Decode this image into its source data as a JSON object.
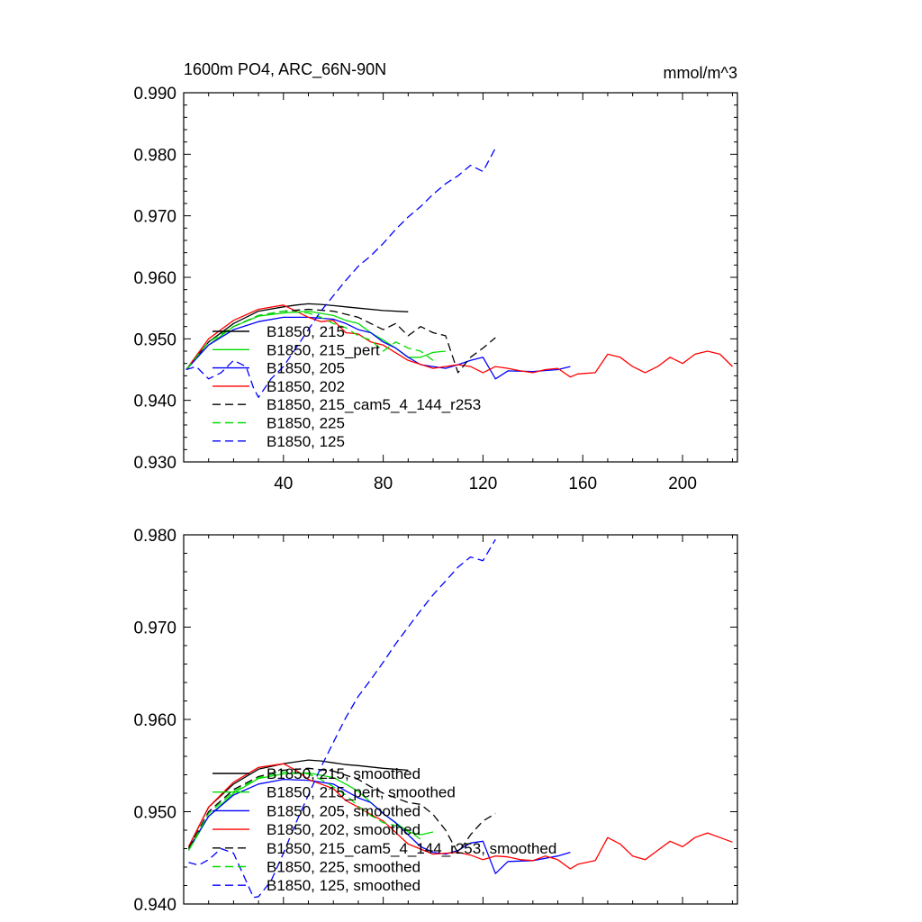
{
  "chart_data": [
    {
      "type": "line",
      "title": "1600m PO4, ARC_66N-90N",
      "units": "mmol/m^3",
      "xlim": [
        0,
        222
      ],
      "ylim": [
        0.93,
        0.99
      ],
      "x_ticks": [
        40,
        80,
        120,
        160,
        200
      ],
      "x_tick_labels": [
        "40",
        "80",
        "120",
        "160",
        "200"
      ],
      "y_ticks": [
        0.93,
        0.94,
        0.95,
        0.96,
        0.97,
        0.98,
        0.99
      ],
      "y_tick_labels": [
        "0.930",
        "0.940",
        "0.950",
        "0.960",
        "0.970",
        "0.980",
        "0.990"
      ],
      "legend_position": "lower-left",
      "series": [
        {
          "name": "B1850, 215",
          "color": "#000000",
          "dash": "solid",
          "x": [
            1,
            10,
            20,
            30,
            40,
            45,
            50,
            55,
            60,
            65,
            70,
            80,
            90
          ],
          "y": [
            0.945,
            0.9495,
            0.9525,
            0.9545,
            0.9552,
            0.9555,
            0.9557,
            0.9556,
            0.9554,
            0.9552,
            0.955,
            0.9546,
            0.9544
          ]
        },
        {
          "name": "B1850, 215_pert",
          "color": "#00dd00",
          "dash": "solid",
          "x": [
            1,
            10,
            20,
            30,
            40,
            50,
            60,
            65,
            70,
            75,
            80,
            85,
            90,
            95,
            100,
            105
          ],
          "y": [
            0.945,
            0.949,
            0.952,
            0.9537,
            0.9542,
            0.9545,
            0.9538,
            0.953,
            0.9525,
            0.951,
            0.9498,
            0.9485,
            0.947,
            0.947,
            0.9478,
            0.948
          ]
        },
        {
          "name": "B1850, 205",
          "color": "#0000ff",
          "dash": "solid",
          "x": [
            1,
            10,
            20,
            30,
            40,
            50,
            60,
            65,
            70,
            75,
            80,
            85,
            90,
            95,
            100,
            105,
            110,
            115,
            120,
            125,
            130,
            140,
            150,
            155
          ],
          "y": [
            0.945,
            0.949,
            0.9515,
            0.9528,
            0.9535,
            0.9535,
            0.9532,
            0.9525,
            0.9515,
            0.951,
            0.9495,
            0.9485,
            0.947,
            0.9458,
            0.9455,
            0.9452,
            0.9458,
            0.9465,
            0.947,
            0.9435,
            0.9448,
            0.9447,
            0.945,
            0.9455
          ]
        },
        {
          "name": "B1850, 202",
          "color": "#ff0000",
          "dash": "solid",
          "x": [
            1,
            10,
            20,
            30,
            40,
            45,
            50,
            55,
            60,
            65,
            70,
            75,
            80,
            90,
            100,
            110,
            115,
            120,
            125,
            130,
            135,
            140,
            145,
            150,
            155,
            158,
            165,
            170,
            175,
            180,
            185,
            190,
            195,
            200,
            205,
            210,
            215,
            220
          ],
          "y": [
            0.945,
            0.95,
            0.953,
            0.9548,
            0.9555,
            0.9545,
            0.9535,
            0.9528,
            0.953,
            0.951,
            0.9508,
            0.9495,
            0.949,
            0.9465,
            0.9452,
            0.9458,
            0.9455,
            0.9445,
            0.9455,
            0.9452,
            0.9448,
            0.9445,
            0.945,
            0.9452,
            0.9438,
            0.9443,
            0.9445,
            0.9475,
            0.947,
            0.9455,
            0.9445,
            0.9455,
            0.947,
            0.946,
            0.9475,
            0.948,
            0.9475,
            0.9455
          ]
        },
        {
          "name": "B1850, 215_cam5_4_144_r253",
          "color": "#000000",
          "dash": "dashed",
          "x": [
            1,
            10,
            20,
            30,
            40,
            50,
            60,
            70,
            75,
            80,
            85,
            90,
            95,
            100,
            105,
            110,
            115,
            120,
            125
          ],
          "y": [
            0.945,
            0.9495,
            0.952,
            0.9538,
            0.9545,
            0.9548,
            0.9545,
            0.9535,
            0.9525,
            0.9515,
            0.9525,
            0.9505,
            0.952,
            0.951,
            0.9505,
            0.9445,
            0.947,
            0.9485,
            0.9502
          ]
        },
        {
          "name": "B1850, 225",
          "color": "#00dd00",
          "dash": "dashed",
          "x": [
            1,
            10,
            20,
            30,
            40,
            50,
            55,
            60,
            65,
            70,
            75,
            80,
            85,
            90,
            95,
            100
          ],
          "y": [
            0.945,
            0.9495,
            0.952,
            0.9538,
            0.9545,
            0.9542,
            0.9535,
            0.9525,
            0.9518,
            0.9505,
            0.9498,
            0.948,
            0.9495,
            0.9485,
            0.948,
            0.9465
          ]
        },
        {
          "name": "B1850, 125",
          "color": "#0000ff",
          "dash": "dashed",
          "x": [
            1,
            5,
            10,
            15,
            20,
            25,
            28,
            30,
            35,
            40,
            45,
            50,
            55,
            60,
            65,
            70,
            75,
            80,
            85,
            90,
            95,
            100,
            105,
            110,
            115,
            120,
            125
          ],
          "y": [
            0.945,
            0.9455,
            0.9435,
            0.9445,
            0.9465,
            0.9455,
            0.942,
            0.9405,
            0.9435,
            0.9455,
            0.9485,
            0.9515,
            0.9545,
            0.957,
            0.9595,
            0.9618,
            0.9635,
            0.9655,
            0.9678,
            0.9698,
            0.9715,
            0.9735,
            0.9752,
            0.9765,
            0.9782,
            0.9772,
            0.981
          ]
        }
      ]
    },
    {
      "type": "line",
      "title": "",
      "units": "",
      "xlim": [
        0,
        222
      ],
      "ylim": [
        0.94,
        0.98
      ],
      "x_ticks": [
        40,
        80,
        120,
        160,
        200
      ],
      "x_tick_labels": [],
      "y_ticks": [
        0.94,
        0.95,
        0.96,
        0.97,
        0.98
      ],
      "y_tick_labels": [
        "0.940",
        "0.950",
        "0.960",
        "0.970",
        "0.980"
      ],
      "legend_position": "lower-left",
      "series": [
        {
          "name": "B1850, 215, smoothed",
          "color": "#000000",
          "dash": "solid",
          "x": [
            2,
            10,
            20,
            30,
            40,
            45,
            50,
            55,
            60,
            65,
            70,
            80,
            90
          ],
          "y": [
            0.9462,
            0.9505,
            0.953,
            0.9546,
            0.9552,
            0.9554,
            0.9556,
            0.9555,
            0.9553,
            0.9551,
            0.955,
            0.9547,
            0.9545
          ]
        },
        {
          "name": "B1850, 215_pert, smoothed",
          "color": "#00dd00",
          "dash": "solid",
          "x": [
            2,
            10,
            20,
            30,
            40,
            50,
            60,
            65,
            70,
            75,
            80,
            85,
            90,
            95,
            100
          ],
          "y": [
            0.9458,
            0.9495,
            0.952,
            0.9536,
            0.9541,
            0.9542,
            0.9537,
            0.953,
            0.9522,
            0.951,
            0.9498,
            0.9488,
            0.9478,
            0.9475,
            0.9478
          ]
        },
        {
          "name": "B1850, 205, smoothed",
          "color": "#0000ff",
          "dash": "solid",
          "x": [
            2,
            10,
            20,
            30,
            40,
            50,
            60,
            70,
            75,
            80,
            85,
            90,
            95,
            100,
            105,
            110,
            115,
            120,
            125,
            130,
            140,
            150,
            155
          ],
          "y": [
            0.946,
            0.9495,
            0.9518,
            0.953,
            0.9535,
            0.9534,
            0.953,
            0.9515,
            0.951,
            0.9498,
            0.9488,
            0.9475,
            0.9462,
            0.9456,
            0.9454,
            0.9458,
            0.9466,
            0.9468,
            0.9433,
            0.9446,
            0.9447,
            0.9452,
            0.9456
          ]
        },
        {
          "name": "B1850, 202, smoothed",
          "color": "#ff0000",
          "dash": "solid",
          "x": [
            2,
            10,
            20,
            30,
            40,
            45,
            50,
            55,
            60,
            65,
            70,
            75,
            80,
            90,
            100,
            110,
            115,
            120,
            125,
            130,
            135,
            140,
            145,
            150,
            155,
            158,
            165,
            170,
            175,
            180,
            185,
            190,
            195,
            200,
            205,
            210,
            215,
            220
          ],
          "y": [
            0.9462,
            0.9505,
            0.9532,
            0.9548,
            0.9552,
            0.9545,
            0.9535,
            0.953,
            0.9525,
            0.9512,
            0.9505,
            0.9497,
            0.949,
            0.9465,
            0.9454,
            0.9456,
            0.9453,
            0.9448,
            0.9452,
            0.9451,
            0.9448,
            0.9447,
            0.9452,
            0.9448,
            0.9438,
            0.9443,
            0.9447,
            0.9472,
            0.9465,
            0.9452,
            0.9448,
            0.9458,
            0.9468,
            0.9462,
            0.9472,
            0.9477,
            0.9472,
            0.9467
          ]
        },
        {
          "name": "B1850, 215_cam5_4_144_r253, smoothed",
          "color": "#000000",
          "dash": "dashed",
          "x": [
            2,
            10,
            20,
            30,
            40,
            50,
            60,
            70,
            75,
            80,
            85,
            90,
            95,
            100,
            105,
            110,
            115,
            120,
            125
          ],
          "y": [
            0.946,
            0.95,
            0.9524,
            0.9538,
            0.9545,
            0.9547,
            0.9544,
            0.9535,
            0.9527,
            0.952,
            0.9515,
            0.951,
            0.9508,
            0.9497,
            0.948,
            0.9455,
            0.9475,
            0.949,
            0.9498
          ]
        },
        {
          "name": "B1850, 225, smoothed",
          "color": "#00dd00",
          "dash": "dashed",
          "x": [
            2,
            10,
            20,
            30,
            40,
            50,
            55,
            60,
            65,
            70,
            75,
            80,
            85,
            90,
            95
          ],
          "y": [
            0.9458,
            0.9498,
            0.9522,
            0.9537,
            0.9543,
            0.9541,
            0.9535,
            0.9527,
            0.9518,
            0.9506,
            0.9496,
            0.9488,
            0.9485,
            0.948,
            0.947
          ]
        },
        {
          "name": "B1850, 125, smoothed",
          "color": "#0000ff",
          "dash": "dashed",
          "x": [
            2,
            6,
            10,
            15,
            20,
            25,
            28,
            30,
            35,
            40,
            45,
            50,
            55,
            60,
            65,
            70,
            75,
            80,
            85,
            90,
            95,
            100,
            105,
            110,
            115,
            120,
            125
          ],
          "y": [
            0.9445,
            0.9442,
            0.9448,
            0.946,
            0.9455,
            0.9425,
            0.9407,
            0.9408,
            0.9425,
            0.9455,
            0.9488,
            0.9518,
            0.9548,
            0.9575,
            0.9602,
            0.9625,
            0.9643,
            0.9662,
            0.9682,
            0.97,
            0.9718,
            0.9735,
            0.975,
            0.9765,
            0.9776,
            0.9772,
            0.9795
          ]
        }
      ]
    }
  ]
}
